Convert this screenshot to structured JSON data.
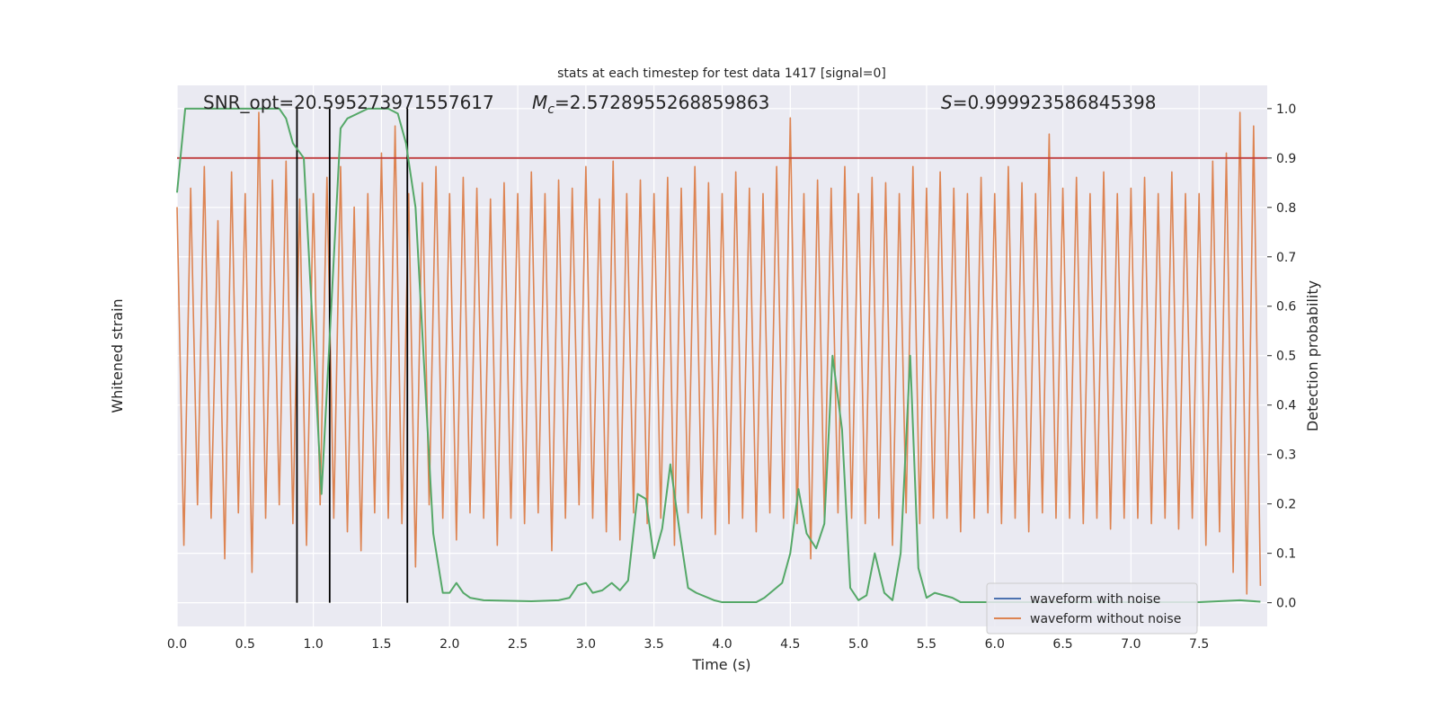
{
  "chart_data": {
    "type": "line",
    "title": "stats at each timestep for test data 1417 [signal=0]",
    "xlabel": "Time (s)",
    "ylabel": "Whitened strain",
    "y2label": "Detection probability",
    "xlim": [
      0,
      8
    ],
    "xticks": [
      {
        "value": 0,
        "label": "0.0"
      },
      0.5,
      {
        "value": 1,
        "label": "1.0"
      },
      1.5,
      {
        "value": 2,
        "label": "2.0"
      },
      2.5,
      {
        "value": 3,
        "label": "3.0"
      },
      3.5,
      {
        "value": 4,
        "label": "4.0"
      },
      4.5,
      {
        "value": 5,
        "label": "5.0"
      },
      5.5,
      {
        "value": 6,
        "label": "6.0"
      },
      6.5,
      {
        "value": 7,
        "label": "7.0"
      },
      7.5
    ],
    "ylim": [
      -1,
      1
    ],
    "y2lim": [
      -0.048,
      1.047
    ],
    "y2ticks": [
      {
        "value": 0,
        "label": "0.0"
      },
      0.1,
      0.2,
      0.3,
      0.4,
      0.5,
      0.6,
      0.7,
      0.8,
      0.9,
      {
        "value": 1,
        "label": "1.0"
      }
    ],
    "grid": true,
    "legend": "lower right",
    "threshold": 0.9,
    "threshold_color": "#c03d3e",
    "vlines": [
      0.88,
      1.12,
      1.69
    ],
    "vline_color": "#000000",
    "annotations": [
      {
        "text": "SNR_opt=20.595273971557617"
      },
      {
        "symbol": "M",
        "subscript": "c",
        "text": "=2.5728955268859863"
      },
      {
        "symbol": "S",
        "text": "=0.999923586845398"
      }
    ],
    "series": [
      {
        "name": "waveform with noise",
        "color": "#4c72b0",
        "x": [],
        "values": []
      },
      {
        "name": "waveform without noise",
        "color": "#dd8452",
        "x": [
          0,
          0.05,
          0.1,
          0.15,
          0.2,
          0.25,
          0.3,
          0.35,
          0.4,
          0.45,
          0.5,
          0.55,
          0.6,
          0.65,
          0.7,
          0.75,
          0.8,
          0.85,
          0.9,
          0.95,
          1,
          1.05,
          1.1,
          1.15,
          1.2,
          1.25,
          1.3,
          1.35,
          1.4,
          1.45,
          1.5,
          1.55,
          1.6,
          1.65,
          1.7,
          1.75,
          1.8,
          1.85,
          1.9,
          1.95,
          2,
          2.05,
          2.1,
          2.15,
          2.2,
          2.25,
          2.3,
          2.35,
          2.4,
          2.45,
          2.5,
          2.55,
          2.6,
          2.65,
          2.7,
          2.75,
          2.8,
          2.85,
          2.9,
          2.95,
          3,
          3.05,
          3.1,
          3.15,
          3.2,
          3.25,
          3.3,
          3.35,
          3.4,
          3.45,
          3.5,
          3.55,
          3.6,
          3.65,
          3.7,
          3.75,
          3.8,
          3.85,
          3.9,
          3.95,
          4,
          4.05,
          4.1,
          4.15,
          4.2,
          4.25,
          4.3,
          4.35,
          4.4,
          4.45,
          4.5,
          4.55,
          4.6,
          4.65,
          4.7,
          4.75,
          4.8,
          4.85,
          4.9,
          4.95,
          5,
          5.05,
          5.1,
          5.15,
          5.2,
          5.25,
          5.3,
          5.35,
          5.4,
          5.45,
          5.5,
          5.55,
          5.6,
          5.65,
          5.7,
          5.75,
          5.8,
          5.85,
          5.9,
          5.95,
          6,
          6.05,
          6.1,
          6.15,
          6.2,
          6.25,
          6.3,
          6.35,
          6.4,
          6.45,
          6.5,
          6.55,
          6.6,
          6.65,
          6.7,
          6.75,
          6.8,
          6.85,
          6.9,
          6.95,
          7,
          7.05,
          7.1,
          7.15,
          7.2,
          7.25,
          7.3,
          7.35,
          7.4,
          7.45,
          7.5,
          7.55,
          7.6,
          7.65,
          7.7,
          7.75,
          7.8,
          7.85,
          7.9,
          7.95
        ],
        "values": [
          0.55,
          -0.7,
          0.62,
          -0.55,
          0.7,
          -0.6,
          0.5,
          -0.75,
          0.68,
          -0.58,
          0.6,
          -0.8,
          0.9,
          -0.6,
          0.65,
          -0.55,
          0.72,
          -0.62,
          0.58,
          -0.7,
          0.6,
          -0.55,
          0.66,
          -0.6,
          0.7,
          -0.65,
          0.55,
          -0.72,
          0.6,
          -0.58,
          0.75,
          -0.6,
          0.85,
          -0.62,
          0.6,
          -0.78,
          0.64,
          -0.55,
          0.7,
          -0.6,
          0.6,
          -0.68,
          0.66,
          -0.58,
          0.62,
          -0.6,
          0.58,
          -0.7,
          0.64,
          -0.6,
          0.6,
          -0.62,
          0.68,
          -0.58,
          0.6,
          -0.72,
          0.65,
          -0.6,
          0.62,
          -0.55,
          0.7,
          -0.6,
          0.58,
          -0.65,
          0.72,
          -0.68,
          0.6,
          -0.58,
          0.65,
          -0.62,
          0.6,
          -0.6,
          0.66,
          -0.7,
          0.62,
          -0.58,
          0.7,
          -0.6,
          0.64,
          -0.66,
          0.6,
          -0.62,
          0.68,
          -0.6,
          0.62,
          -0.65,
          0.6,
          -0.58,
          0.7,
          -0.6,
          0.88,
          -0.62,
          0.6,
          -0.75,
          0.65,
          -0.6,
          0.62,
          -0.58,
          0.7,
          -0.6,
          0.6,
          -0.62,
          0.66,
          -0.6,
          0.64,
          -0.7,
          0.6,
          -0.58,
          0.7,
          -0.62,
          0.62,
          -0.6,
          0.68,
          -0.6,
          0.62,
          -0.65,
          0.6,
          -0.6,
          0.66,
          -0.58,
          0.6,
          -0.62,
          0.7,
          -0.6,
          0.64,
          -0.65,
          0.6,
          -0.58,
          0.82,
          -0.6,
          0.62,
          -0.6,
          0.66,
          -0.62,
          0.6,
          -0.6,
          0.68,
          -0.64,
          0.6,
          -0.6,
          0.62,
          -0.6,
          0.66,
          -0.62,
          0.6,
          -0.6,
          0.68,
          -0.64,
          0.6,
          -0.6,
          0.6,
          -0.7,
          0.72,
          -0.65,
          0.75,
          -0.8,
          0.9,
          -0.88,
          0.85,
          -0.85
        ]
      },
      {
        "color": "#55a868",
        "axis": "y2",
        "x": [
          0,
          0.06,
          0.12,
          0.5,
          0.75,
          0.8,
          0.85,
          0.93,
          1.06,
          1.2,
          1.25,
          1.4,
          1.55,
          1.62,
          1.68,
          1.75,
          1.88,
          1.95,
          2.0,
          2.05,
          2.1,
          2.15,
          2.25,
          2.6,
          2.8,
          2.88,
          2.94,
          3.0,
          3.05,
          3.12,
          3.19,
          3.25,
          3.31,
          3.38,
          3.44,
          3.5,
          3.56,
          3.62,
          3.69,
          3.75,
          3.81,
          3.94,
          4.0,
          4.25,
          4.31,
          4.44,
          4.5,
          4.56,
          4.62,
          4.69,
          4.75,
          4.81,
          4.88,
          4.94,
          5.0,
          5.06,
          5.12,
          5.19,
          5.25,
          5.31,
          5.38,
          5.44,
          5.5,
          5.56,
          5.69,
          5.75,
          7.5,
          7.8,
          7.95
        ],
        "values": [
          0.83,
          1.0,
          1.0,
          1.0,
          1.0,
          0.98,
          0.93,
          0.9,
          0.22,
          0.96,
          0.98,
          1.0,
          1.0,
          0.99,
          0.93,
          0.8,
          0.14,
          0.02,
          0.02,
          0.04,
          0.02,
          0.01,
          0.005,
          0.003,
          0.005,
          0.01,
          0.035,
          0.04,
          0.02,
          0.025,
          0.04,
          0.025,
          0.045,
          0.22,
          0.21,
          0.09,
          0.15,
          0.28,
          0.14,
          0.03,
          0.02,
          0.005,
          0.001,
          0.001,
          0.01,
          0.04,
          0.1,
          0.23,
          0.14,
          0.11,
          0.16,
          0.5,
          0.35,
          0.03,
          0.005,
          0.015,
          0.1,
          0.02,
          0.005,
          0.1,
          0.5,
          0.07,
          0.01,
          0.02,
          0.01,
          0.001,
          0.001,
          0.005,
          0.002
        ]
      }
    ]
  }
}
